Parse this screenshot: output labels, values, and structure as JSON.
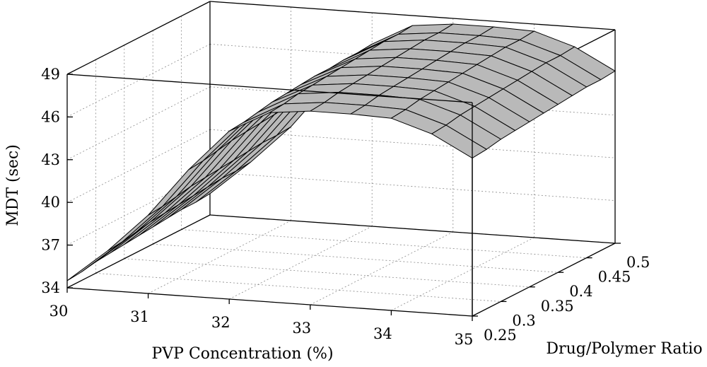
{
  "chart_data": {
    "type": "surface3d",
    "xlabel": "PVP Concentration (%)",
    "ylabel": "Drug/Polymer Ratio",
    "zlabel": "MDT (sec)",
    "x_ticks": [
      "30",
      "31",
      "32",
      "33",
      "34",
      "35"
    ],
    "y_ticks": [
      "0.25",
      "0.3",
      "0.35",
      "0.4",
      "0.45",
      "0.5"
    ],
    "z_ticks": [
      "34",
      "37",
      "40",
      "43",
      "46",
      "49"
    ],
    "xlim": [
      30,
      35
    ],
    "ylim": [
      0.25,
      0.5
    ],
    "zlim": [
      34,
      49
    ],
    "grid": true,
    "surface": {
      "x": [
        30,
        30.5,
        31,
        31.5,
        32,
        32.5,
        33,
        33.5,
        34,
        34.5,
        35
      ],
      "y": [
        0.25,
        0.275,
        0.3,
        0.325,
        0.35,
        0.375,
        0.4,
        0.425,
        0.45,
        0.475,
        0.5
      ],
      "z": [
        [
          34.5,
          36.8,
          39.5,
          42.9,
          45.8,
          47.3,
          47.6,
          47.6,
          47.5,
          46.6,
          45.1
        ],
        [
          34.6,
          36.9,
          39.6,
          43.0,
          45.9,
          47.4,
          47.7,
          47.7,
          47.6,
          46.7,
          45.2
        ],
        [
          34.8,
          37.1,
          39.8,
          43.2,
          46.1,
          47.6,
          47.9,
          47.9,
          47.8,
          46.9,
          45.4
        ],
        [
          34.9,
          37.3,
          40.0,
          43.4,
          46.3,
          47.7,
          48.0,
          48.0,
          47.9,
          47.0,
          45.5
        ],
        [
          35.0,
          37.4,
          40.1,
          43.5,
          46.4,
          47.8,
          48.1,
          48.1,
          48.0,
          47.1,
          45.6
        ],
        [
          35.1,
          37.5,
          40.2,
          43.6,
          46.5,
          47.9,
          48.2,
          48.2,
          48.1,
          47.2,
          45.7
        ],
        [
          35.2,
          37.6,
          40.3,
          43.7,
          46.6,
          48.0,
          48.3,
          48.3,
          48.2,
          47.3,
          45.8
        ],
        [
          35.3,
          37.7,
          40.4,
          43.8,
          46.6,
          48.1,
          48.4,
          48.4,
          48.3,
          47.4,
          45.9
        ],
        [
          35.4,
          37.8,
          40.5,
          43.9,
          46.7,
          48.2,
          48.5,
          48.5,
          48.4,
          47.5,
          46.0
        ],
        [
          35.4,
          37.8,
          40.5,
          43.9,
          46.7,
          48.2,
          48.5,
          48.5,
          48.4,
          47.5,
          46.0
        ],
        [
          35.5,
          37.9,
          40.6,
          44.0,
          46.8,
          48.3,
          48.6,
          48.6,
          48.5,
          47.6,
          46.1
        ]
      ]
    }
  }
}
